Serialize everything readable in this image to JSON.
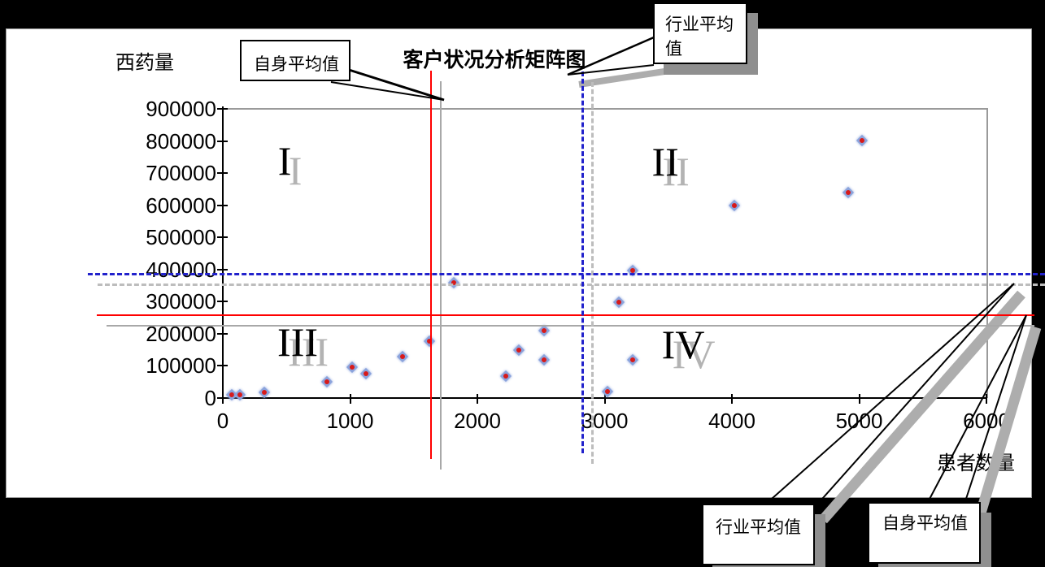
{
  "page": {
    "background": "#000000"
  },
  "chart": {
    "title": "客户状况分析矩阵图",
    "ylabel": "西药量",
    "xlabel": "患者数量"
  },
  "callouts": {
    "own_average_top": "自身平均值",
    "industry_average_top": "行业平均值",
    "industry_average_bottom": "行业平均值",
    "own_average_bottom": "自身平均值"
  },
  "colors": {
    "own_average_line": "#ff0000",
    "industry_average_line": "#2222cc",
    "solid_shadow": "#a8a8a8",
    "dashed_shadow": "#bdbdbd",
    "marker_fill": "#8ba3dc",
    "marker_core": "#d81a1a",
    "numeral_shadow": "#b3b3b3"
  },
  "chart_data": {
    "type": "scatter",
    "title": "客户状况分析矩阵图",
    "xlabel": "患者数量",
    "ylabel": "西药量",
    "xlim": [
      0,
      6000
    ],
    "ylim": [
      0,
      900000
    ],
    "x_ticks": [
      0,
      1000,
      2000,
      3000,
      4000,
      5000,
      6000
    ],
    "y_ticks": [
      0,
      100000,
      200000,
      300000,
      400000,
      500000,
      600000,
      700000,
      800000,
      900000
    ],
    "grid": false,
    "legend": "none",
    "points": [
      [
        70,
        10000
      ],
      [
        135,
        10000
      ],
      [
        325,
        18000
      ],
      [
        820,
        50000
      ],
      [
        1015,
        96000
      ],
      [
        1125,
        76000
      ],
      [
        1410,
        129000
      ],
      [
        1620,
        177000
      ],
      [
        1815,
        359000
      ],
      [
        2225,
        68000
      ],
      [
        2325,
        149000
      ],
      [
        2525,
        210000
      ],
      [
        2525,
        119000
      ],
      [
        3020,
        20000
      ],
      [
        3110,
        298000
      ],
      [
        3220,
        396000
      ],
      [
        3220,
        119000
      ],
      [
        4020,
        599000
      ],
      [
        4915,
        640000
      ],
      [
        5025,
        801000
      ]
    ],
    "reference_lines": {
      "own_average": {
        "label": "自身平均值",
        "style": "solid",
        "color": "#ff0000",
        "x": 1630,
        "y": 260000
      },
      "industry_average": {
        "label": "行业平均值",
        "style": "dashed",
        "color": "#2222cc",
        "x": 2820,
        "y": 390000
      }
    },
    "quadrant_labels": [
      {
        "label": "I",
        "x": 486,
        "y": 738000
      },
      {
        "label": "II",
        "x": 3477,
        "y": 735000
      },
      {
        "label": "III",
        "x": 588,
        "y": 174000
      },
      {
        "label": "IV",
        "x": 3617,
        "y": 167000
      }
    ]
  }
}
